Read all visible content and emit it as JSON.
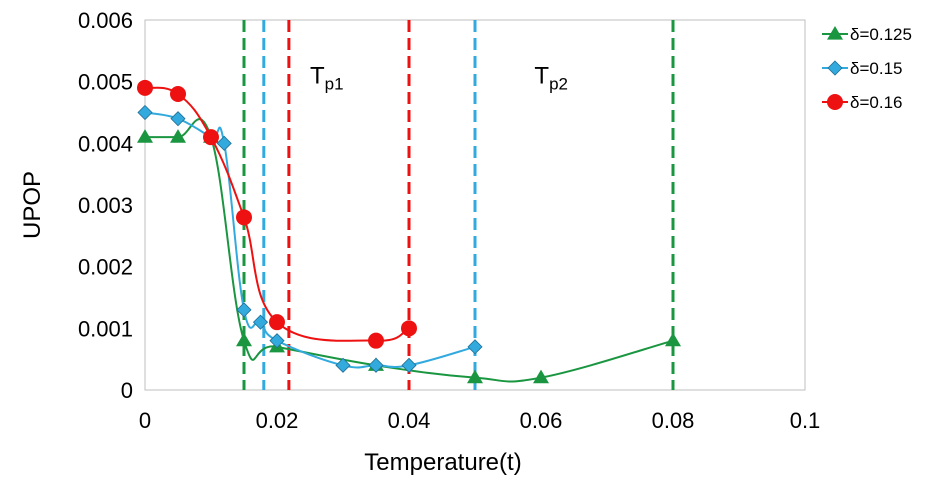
{
  "chart_data": {
    "type": "scatter",
    "title": "",
    "xlabel": "Temperature(t)",
    "ylabel": "UPOP",
    "xlim": [
      0,
      0.1
    ],
    "ylim": [
      0,
      0.006
    ],
    "xticks": [
      0,
      0.02,
      0.04,
      0.06,
      0.08,
      0.1
    ],
    "xtick_labels": [
      "0",
      "0.02",
      "0.04",
      "0.06",
      "0.08",
      "0.1"
    ],
    "yticks": [
      0,
      0.001,
      0.002,
      0.003,
      0.004,
      0.005,
      0.006
    ],
    "ytick_labels": [
      "0",
      "0.001",
      "0.002",
      "0.003",
      "0.004",
      "0.005",
      "0.006"
    ],
    "grid": false,
    "legend_position": "top-right",
    "series": [
      {
        "name": "δ=0.125",
        "color": "#1a9641",
        "marker": "triangle",
        "x": [
          0,
          0.005,
          0.01,
          0.015,
          0.02,
          0.035,
          0.05,
          0.06,
          0.08
        ],
        "y": [
          0.0041,
          0.0041,
          0.0041,
          0.0008,
          0.0007,
          0.0004,
          0.0002,
          0.0002,
          0.0008
        ]
      },
      {
        "name": "δ=0.15",
        "color": "#33aadd",
        "marker": "diamond",
        "x": [
          0,
          0.005,
          0.01,
          0.012,
          0.015,
          0.0175,
          0.02,
          0.03,
          0.035,
          0.04,
          0.05
        ],
        "y": [
          0.0045,
          0.0044,
          0.0041,
          0.004,
          0.0013,
          0.0011,
          0.0008,
          0.0004,
          0.0004,
          0.0004,
          0.0007
        ]
      },
      {
        "name": "δ=0.16",
        "color": "#ee1111",
        "marker": "circle",
        "x": [
          0,
          0.005,
          0.01,
          0.015,
          0.02,
          0.035,
          0.04
        ],
        "y": [
          0.0049,
          0.0048,
          0.0041,
          0.0028,
          0.0011,
          0.0008,
          0.001
        ]
      }
    ],
    "vertical_lines": [
      {
        "x": 0.015,
        "color": "#1a9641",
        "series": "δ=0.125"
      },
      {
        "x": 0.018,
        "color": "#33aadd",
        "series": "δ=0.15"
      },
      {
        "x": 0.0218,
        "color": "#ee1111",
        "series": "δ=0.16"
      },
      {
        "x": 0.04,
        "color": "#ee1111",
        "series": "δ=0.16"
      },
      {
        "x": 0.05,
        "color": "#33aadd",
        "series": "δ=0.15"
      },
      {
        "x": 0.08,
        "color": "#1a9641",
        "series": "δ=0.125"
      }
    ],
    "annotations": [
      {
        "main": "T",
        "sub": "p1",
        "x": 0.025,
        "y": 0.0052
      },
      {
        "main": "T",
        "sub": "p2",
        "x": 0.059,
        "y": 0.0052
      }
    ]
  }
}
